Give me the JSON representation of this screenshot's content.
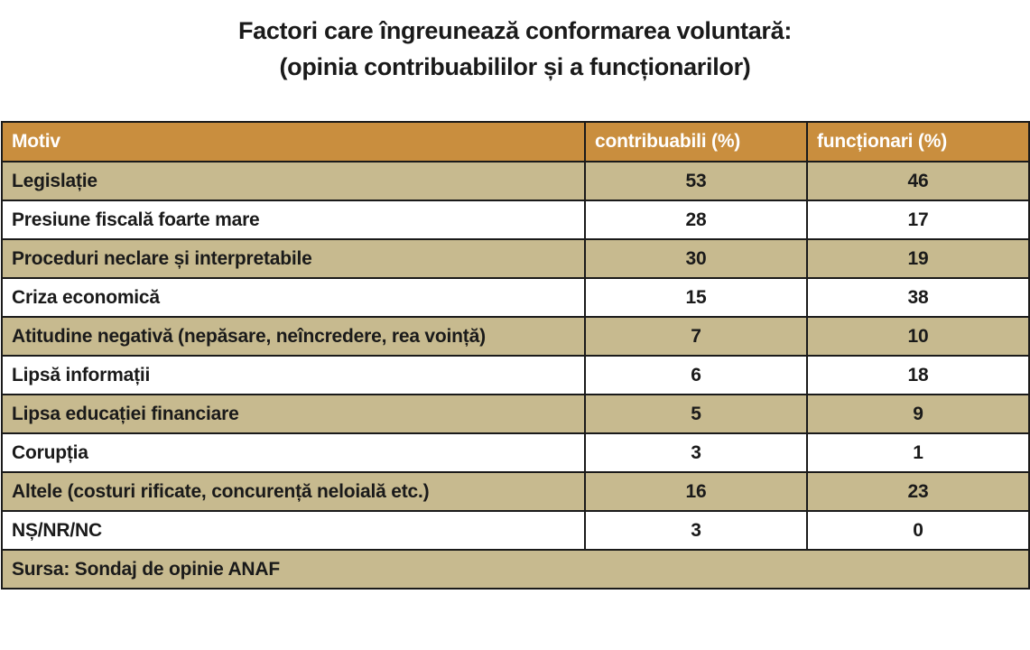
{
  "title": {
    "line1": "Factori care îngreunează conformarea voluntară:",
    "line2": "(opinia contribuabililor și a funcționarilor)"
  },
  "colors": {
    "header_bg": "#c98e3e",
    "band_bg": "#c7ba8f",
    "plain_bg": "#ffffff"
  },
  "chart_data": {
    "type": "table",
    "columns": [
      "Motiv",
      "contribuabili (%)",
      "funcționari (%)"
    ],
    "rows": [
      [
        "Legislație",
        "53",
        "46"
      ],
      [
        "Presiune fiscală foarte mare",
        "28",
        "17"
      ],
      [
        "Proceduri neclare și interpretabile",
        "30",
        "19"
      ],
      [
        "Criza economică",
        "15",
        "38"
      ],
      [
        "Atitudine negativă (nepăsare, neîncredere, rea voință)",
        "7",
        "10"
      ],
      [
        "Lipsă informații",
        "6",
        "18"
      ],
      [
        "Lipsa educației financiare",
        "5",
        "9"
      ],
      [
        "Corupția",
        "3",
        "1"
      ],
      [
        "Altele (costuri rificate, concurență neloială etc.)",
        "16",
        "23"
      ],
      [
        "NȘ/NR/NC",
        "3",
        "0"
      ]
    ],
    "footer": "Sursa: Sondaj de opinie ANAF"
  }
}
